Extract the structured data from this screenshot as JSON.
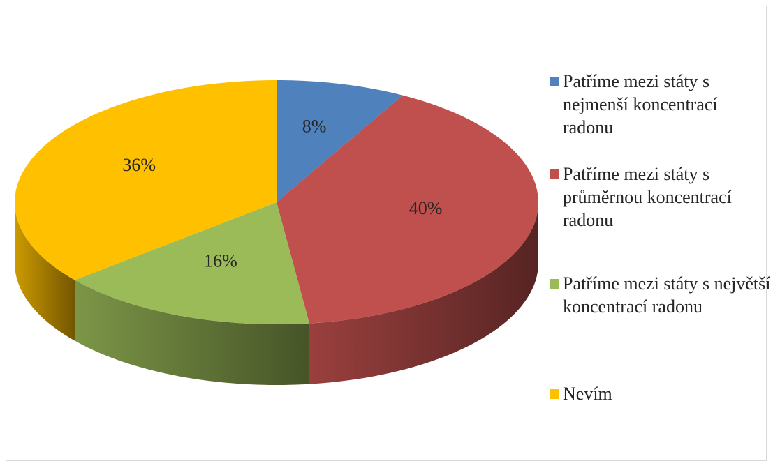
{
  "chart_data": {
    "type": "pie",
    "categories": [
      "Patříme mezi státy s nejmenší koncentrací radonu",
      "Patříme mezi státy s průměrnou koncentrací radonu",
      "Patříme mezi státy s největší koncentrací radonu",
      "Nevím"
    ],
    "values": [
      8,
      40,
      16,
      36
    ],
    "value_labels": [
      "8%",
      "40%",
      "16%",
      "36%"
    ],
    "colors": [
      "#4f81bd",
      "#c0504d",
      "#9bbb59",
      "#ffc000"
    ]
  }
}
